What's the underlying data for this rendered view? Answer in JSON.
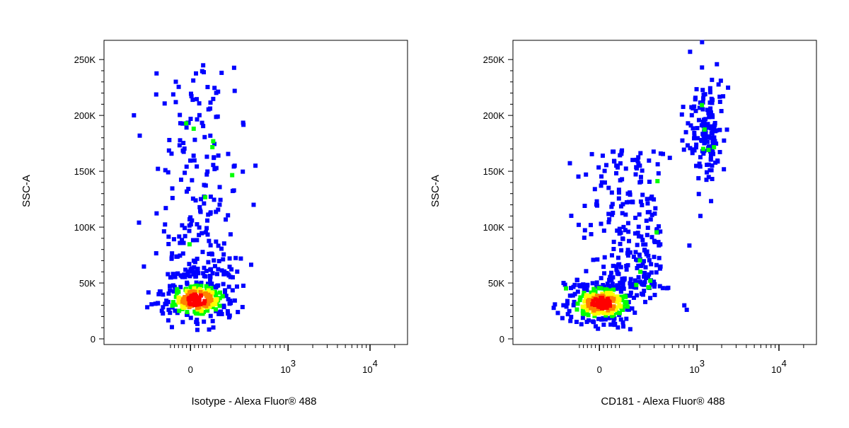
{
  "chart_data": [
    {
      "type": "scatter",
      "title": "",
      "xlabel": "Isotype - Alexa Fluor® 488",
      "ylabel": "SSC-A",
      "x_scale": "biexponential",
      "ylim": [
        0,
        262144
      ],
      "y_ticks": [
        {
          "value": 0,
          "label": "0"
        },
        {
          "value": 50000,
          "label": "50K"
        },
        {
          "value": 100000,
          "label": "100K"
        },
        {
          "value": 150000,
          "label": "150K"
        },
        {
          "value": 200000,
          "label": "200K"
        },
        {
          "value": 250000,
          "label": "250K"
        }
      ],
      "x_ticks": [
        {
          "value": 0,
          "label": "0"
        },
        {
          "value": 1000,
          "label": "10",
          "exponent": "3"
        },
        {
          "value": 10000,
          "label": "10",
          "exponent": "4"
        }
      ],
      "density_colors": [
        "#0000ff",
        "#00ff00",
        "#ffff00",
        "#ff8000",
        "#ff0000"
      ],
      "populations": [
        {
          "name": "main",
          "x_center": 30,
          "x_spread": 90,
          "y_center": 35000,
          "y_spread": 9000,
          "count": 260,
          "density": "high"
        },
        {
          "name": "ssc-tail",
          "x_center": 50,
          "x_spread": 110,
          "y_range": [
            55000,
            245000
          ],
          "count": 230,
          "density": "low"
        }
      ],
      "outliers": [
        {
          "x": 400,
          "y": 155000
        },
        {
          "x": 380,
          "y": 120000
        }
      ]
    },
    {
      "type": "scatter",
      "title": "",
      "xlabel": "CD181 - Alexa Fluor® 488",
      "ylabel": "SSC-A",
      "x_scale": "biexponential",
      "ylim": [
        0,
        262144
      ],
      "y_ticks": [
        {
          "value": 0,
          "label": "0"
        },
        {
          "value": 50000,
          "label": "50K"
        },
        {
          "value": 100000,
          "label": "100K"
        },
        {
          "value": 150000,
          "label": "150K"
        },
        {
          "value": 200000,
          "label": "200K"
        },
        {
          "value": 250000,
          "label": "250K"
        }
      ],
      "x_ticks": [
        {
          "value": 0,
          "label": "0"
        },
        {
          "value": 1000,
          "label": "10",
          "exponent": "3"
        },
        {
          "value": 10000,
          "label": "10",
          "exponent": "4"
        }
      ],
      "density_colors": [
        "#0000ff",
        "#00ff00",
        "#ffff00",
        "#ff8000",
        "#ff0000"
      ],
      "populations": [
        {
          "name": "negative",
          "x_center": 10,
          "x_spread": 90,
          "y_center": 32000,
          "y_spread": 9000,
          "count": 280,
          "density": "high"
        },
        {
          "name": "negative-tail",
          "x_center": 150,
          "x_spread": 120,
          "y_range": [
            45000,
            170000
          ],
          "count": 260,
          "density": "low"
        },
        {
          "name": "CD181-positive",
          "x_center": 1300,
          "x_spread_log": 0.12,
          "y_center": 185000,
          "y_spread": 22000,
          "count": 160,
          "density": "low"
        }
      ],
      "outliers": [
        {
          "x": 700,
          "y": 30000
        },
        {
          "x": 750,
          "y": 26000
        },
        {
          "x": 1100,
          "y": 110000
        }
      ]
    }
  ]
}
